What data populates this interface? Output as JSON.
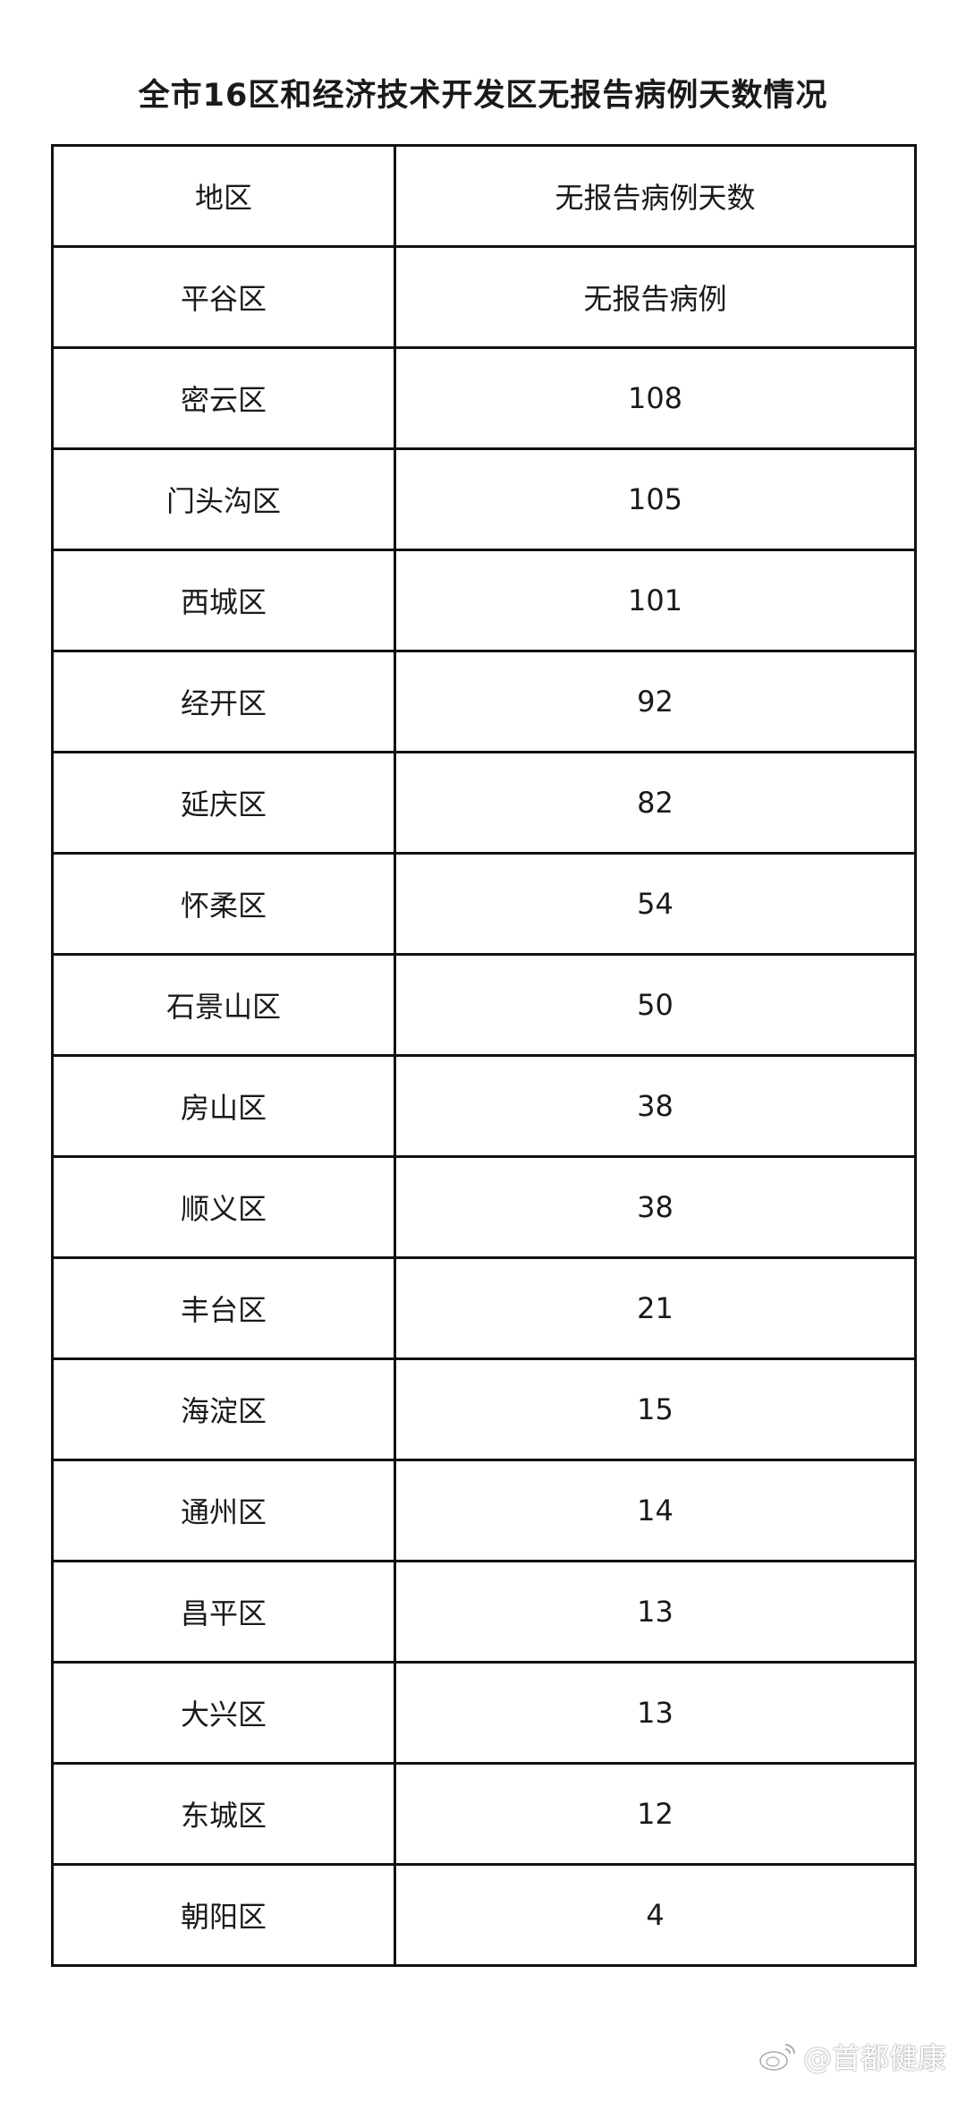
{
  "title": "全市16区和经济技术开发区无报告病例天数情况",
  "table": {
    "headers": [
      "地区",
      "无报告病例天数"
    ],
    "rows": [
      [
        "平谷区",
        "无报告病例"
      ],
      [
        "密云区",
        "108"
      ],
      [
        "门头沟区",
        "105"
      ],
      [
        "西城区",
        "101"
      ],
      [
        "经开区",
        "92"
      ],
      [
        "延庆区",
        "82"
      ],
      [
        "怀柔区",
        "54"
      ],
      [
        "石景山区",
        "50"
      ],
      [
        "房山区",
        "38"
      ],
      [
        "顺义区",
        "38"
      ],
      [
        "丰台区",
        "21"
      ],
      [
        "海淀区",
        "15"
      ],
      [
        "通州区",
        "14"
      ],
      [
        "昌平区",
        "13"
      ],
      [
        "大兴区",
        "13"
      ],
      [
        "东城区",
        "12"
      ],
      [
        "朝阳区",
        "4"
      ]
    ]
  },
  "watermark": {
    "icon": "weibo-icon",
    "text": "@首都健康"
  }
}
